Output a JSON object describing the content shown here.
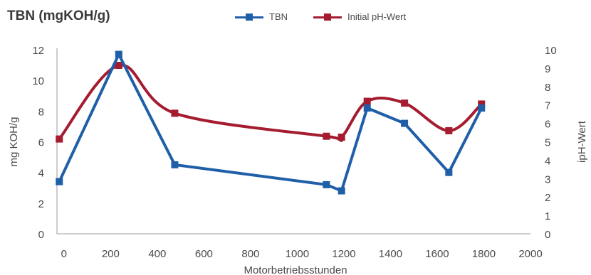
{
  "chart_data": {
    "type": "line",
    "title": "TBN (mgKOH/g)",
    "xlabel": "Motorbetriebsstunden",
    "ylabel_left": "mg KOH/g",
    "ylabel_right": "ipH-Wert",
    "xlim": [
      -30,
      2000
    ],
    "ylim_left": [
      0,
      12
    ],
    "ylim_right": [
      0,
      10
    ],
    "x_ticks": [
      0,
      200,
      400,
      600,
      800,
      1000,
      1200,
      1400,
      1600,
      1800,
      2000
    ],
    "y_left_ticks": [
      0,
      2,
      4,
      6,
      8,
      10,
      12
    ],
    "y_right_ticks": [
      0,
      1,
      2,
      3,
      4,
      5,
      6,
      7,
      8,
      9,
      10
    ],
    "legend_position": "top",
    "grid": false,
    "series": [
      {
        "name": "TBN",
        "axis": "left",
        "color": "#1f5fa8",
        "smooth": false,
        "points": [
          [
            -20,
            3.4
          ],
          [
            235,
            11.7
          ],
          [
            475,
            4.5
          ],
          [
            1125,
            3.2
          ],
          [
            1190,
            2.8
          ],
          [
            1300,
            8.2
          ],
          [
            1460,
            7.2
          ],
          [
            1650,
            4.0
          ],
          [
            1790,
            8.2
          ]
        ]
      },
      {
        "name": "Initial pH-Wert",
        "axis": "right",
        "color": "#a51c30",
        "smooth": true,
        "points": [
          [
            -20,
            5.15
          ],
          [
            235,
            9.15
          ],
          [
            475,
            6.55
          ],
          [
            1125,
            5.3
          ],
          [
            1190,
            5.25
          ],
          [
            1300,
            7.2
          ],
          [
            1460,
            7.1
          ],
          [
            1650,
            5.6
          ],
          [
            1790,
            7.05
          ]
        ]
      }
    ]
  }
}
